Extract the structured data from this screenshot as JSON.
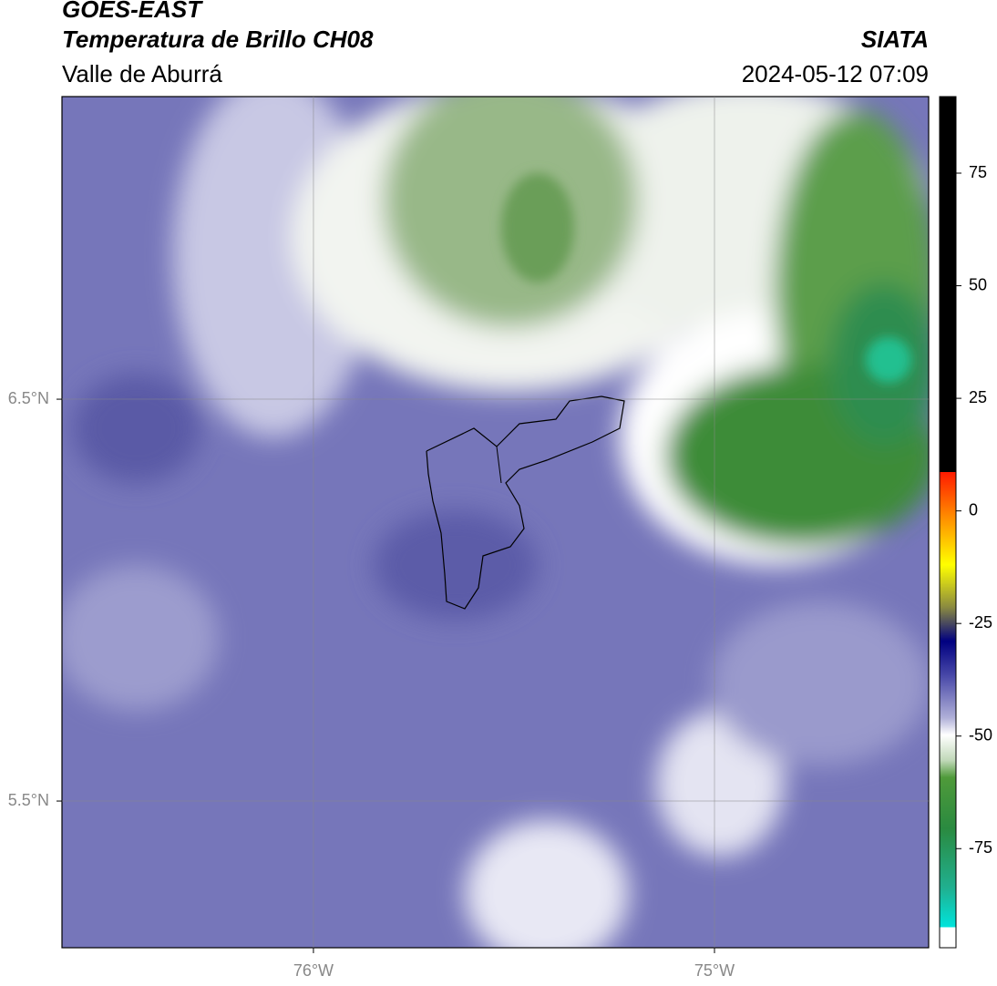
{
  "header": {
    "title": "GOES-EAST",
    "subtitle": "Temperatura de Brillo CH08",
    "source": "SIATA",
    "region": "Valle de Aburrá",
    "datetime": "2024-05-12 07:09"
  },
  "map": {
    "xlim": [
      -76.627,
      -74.466
    ],
    "ylim": [
      5.135,
      7.253
    ],
    "lat_ticks": [
      {
        "value": 6.5,
        "label": "6.5°N"
      },
      {
        "value": 5.5,
        "label": "5.5°N"
      }
    ],
    "lon_ticks": [
      {
        "value": -76,
        "label": "76°W"
      },
      {
        "value": -75,
        "label": "75°W"
      }
    ]
  },
  "colorbar": {
    "lim": [
      -97,
      92
    ],
    "ticks": [
      75,
      50,
      25,
      0,
      -25,
      -50,
      -75
    ]
  }
}
